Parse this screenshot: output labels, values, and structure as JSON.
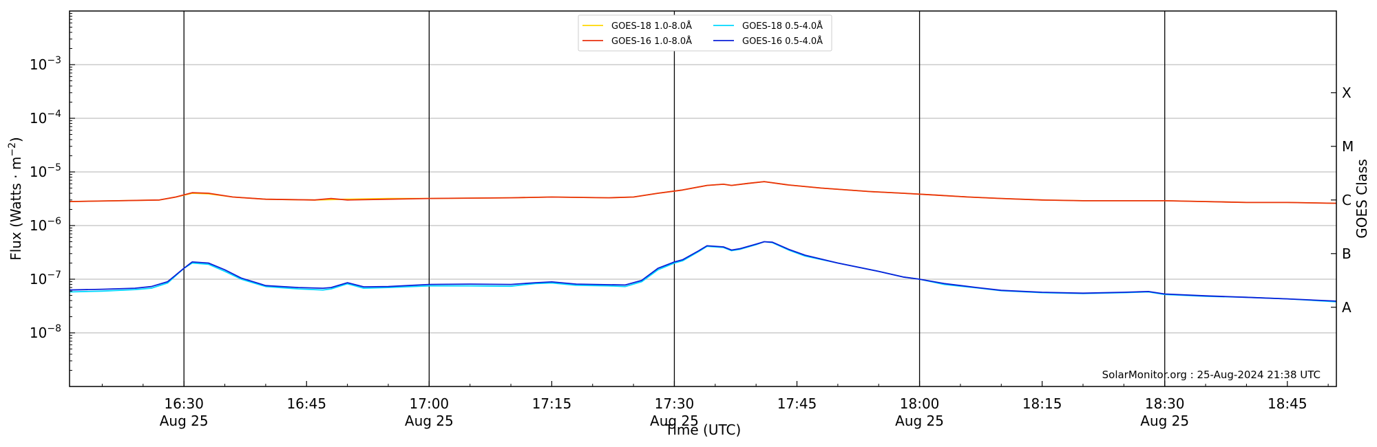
{
  "chart_data": {
    "type": "line",
    "xlabel": "Time (UTC)",
    "ylabel_left": "Flux (Watts · m",
    "ylabel_left_sup": "−2",
    "ylabel_left_end": ")",
    "ylabel_right": "GOES Class",
    "y_scale": "log",
    "ylim": [
      1e-09,
      0.01
    ],
    "xlim": [
      "16:16",
      "18:51"
    ],
    "grid": "horizontal at decades, vertical at half hours",
    "credit": "SolarMonitor.org : 25-Aug-2024 21:38 UTC",
    "legend_position": "top-center",
    "y_ticks": [
      {
        "value": 1e-08,
        "base": "10",
        "exp": "−8"
      },
      {
        "value": 1e-07,
        "base": "10",
        "exp": "−7"
      },
      {
        "value": 1e-06,
        "base": "10",
        "exp": "−6"
      },
      {
        "value": 1e-05,
        "base": "10",
        "exp": "−5"
      },
      {
        "value": 0.0001,
        "base": "10",
        "exp": "−4"
      },
      {
        "value": 0.001,
        "base": "10",
        "exp": "−3"
      }
    ],
    "x_ticks": [
      {
        "time": "16:30",
        "label": "16:30",
        "date": "Aug 25"
      },
      {
        "time": "16:45",
        "label": "16:45",
        "date": ""
      },
      {
        "time": "17:00",
        "label": "17:00",
        "date": "Aug 25"
      },
      {
        "time": "17:15",
        "label": "17:15",
        "date": ""
      },
      {
        "time": "17:30",
        "label": "17:30",
        "date": "Aug 25"
      },
      {
        "time": "17:45",
        "label": "17:45",
        "date": ""
      },
      {
        "time": "18:00",
        "label": "18:00",
        "date": "Aug 25"
      },
      {
        "time": "18:15",
        "label": "18:15",
        "date": ""
      },
      {
        "time": "18:30",
        "label": "18:30",
        "date": "Aug 25"
      },
      {
        "time": "18:45",
        "label": "18:45",
        "date": ""
      }
    ],
    "class_labels": [
      {
        "label": "A",
        "value": 3e-08
      },
      {
        "label": "B",
        "value": 3e-07
      },
      {
        "label": "C",
        "value": 3e-06
      },
      {
        "label": "M",
        "value": 3e-05
      },
      {
        "label": "X",
        "value": 0.0003
      }
    ],
    "series": [
      {
        "name": "GOES-18 1.0-8.0Å",
        "color": "#ffd700",
        "points": [
          [
            "16:16",
            2.8e-06
          ],
          [
            "16:22",
            2.9e-06
          ],
          [
            "16:27",
            3e-06
          ],
          [
            "16:29",
            3.4e-06
          ],
          [
            "16:31",
            4e-06
          ],
          [
            "16:33",
            3.9e-06
          ],
          [
            "16:36",
            3.4e-06
          ],
          [
            "16:40",
            3.1e-06
          ],
          [
            "16:46",
            3e-06
          ],
          [
            "16:50",
            3.1e-06
          ],
          [
            "16:55",
            3.2e-06
          ],
          [
            "17:00",
            3.2e-06
          ],
          [
            "17:10",
            3.3e-06
          ],
          [
            "17:15",
            3.4e-06
          ],
          [
            "17:22",
            3.3e-06
          ],
          [
            "17:25",
            3.4e-06
          ],
          [
            "17:28",
            4e-06
          ],
          [
            "17:31",
            4.6e-06
          ],
          [
            "17:34",
            5.6e-06
          ],
          [
            "17:36",
            5.9e-06
          ],
          [
            "17:37",
            5.6e-06
          ],
          [
            "17:39",
            6.1e-06
          ],
          [
            "17:41",
            6.6e-06
          ],
          [
            "17:44",
            5.7e-06
          ],
          [
            "17:48",
            5e-06
          ],
          [
            "17:54",
            4.3e-06
          ],
          [
            "17:58",
            4e-06
          ],
          [
            "18:02",
            3.7e-06
          ],
          [
            "18:06",
            3.4e-06
          ],
          [
            "18:10",
            3.2e-06
          ],
          [
            "18:15",
            3e-06
          ],
          [
            "18:20",
            2.9e-06
          ],
          [
            "18:25",
            2.9e-06
          ],
          [
            "18:30",
            2.9e-06
          ],
          [
            "18:35",
            2.8e-06
          ],
          [
            "18:40",
            2.7e-06
          ],
          [
            "18:45",
            2.7e-06
          ],
          [
            "18:51",
            2.6e-06
          ]
        ]
      },
      {
        "name": "GOES-16 1.0-8.0Å",
        "color": "#e8300e",
        "points": [
          [
            "16:16",
            2.8e-06
          ],
          [
            "16:22",
            2.9e-06
          ],
          [
            "16:27",
            3e-06
          ],
          [
            "16:29",
            3.4e-06
          ],
          [
            "16:31",
            4.1e-06
          ],
          [
            "16:33",
            4e-06
          ],
          [
            "16:36",
            3.4e-06
          ],
          [
            "16:40",
            3.1e-06
          ],
          [
            "16:46",
            3e-06
          ],
          [
            "16:48",
            3.2e-06
          ],
          [
            "16:50",
            3e-06
          ],
          [
            "16:55",
            3.1e-06
          ],
          [
            "17:00",
            3.2e-06
          ],
          [
            "17:10",
            3.3e-06
          ],
          [
            "17:15",
            3.4e-06
          ],
          [
            "17:22",
            3.3e-06
          ],
          [
            "17:25",
            3.4e-06
          ],
          [
            "17:28",
            4e-06
          ],
          [
            "17:31",
            4.6e-06
          ],
          [
            "17:34",
            5.6e-06
          ],
          [
            "17:36",
            5.9e-06
          ],
          [
            "17:37",
            5.6e-06
          ],
          [
            "17:39",
            6.1e-06
          ],
          [
            "17:41",
            6.6e-06
          ],
          [
            "17:44",
            5.7e-06
          ],
          [
            "17:48",
            5e-06
          ],
          [
            "17:54",
            4.3e-06
          ],
          [
            "17:58",
            4e-06
          ],
          [
            "18:02",
            3.7e-06
          ],
          [
            "18:06",
            3.4e-06
          ],
          [
            "18:10",
            3.2e-06
          ],
          [
            "18:15",
            3e-06
          ],
          [
            "18:20",
            2.9e-06
          ],
          [
            "18:25",
            2.9e-06
          ],
          [
            "18:30",
            2.9e-06
          ],
          [
            "18:35",
            2.8e-06
          ],
          [
            "18:40",
            2.7e-06
          ],
          [
            "18:45",
            2.7e-06
          ],
          [
            "18:51",
            2.6e-06
          ]
        ]
      },
      {
        "name": "GOES-18 0.5-4.0Å",
        "color": "#00d8ff",
        "points": [
          [
            "16:16",
            5.8e-08
          ],
          [
            "16:20",
            6e-08
          ],
          [
            "16:24",
            6.4e-08
          ],
          [
            "16:26",
            6.8e-08
          ],
          [
            "16:28",
            8.5e-08
          ],
          [
            "16:30",
            1.6e-07
          ],
          [
            "16:31",
            2e-07
          ],
          [
            "16:33",
            1.9e-07
          ],
          [
            "16:35",
            1.4e-07
          ],
          [
            "16:37",
            1e-07
          ],
          [
            "16:40",
            7.3e-08
          ],
          [
            "16:44",
            6.6e-08
          ],
          [
            "16:47",
            6.3e-08
          ],
          [
            "16:48",
            6.6e-08
          ],
          [
            "16:50",
            8.2e-08
          ],
          [
            "16:52",
            6.8e-08
          ],
          [
            "16:55",
            7e-08
          ],
          [
            "17:00",
            7.5e-08
          ],
          [
            "17:05",
            7.5e-08
          ],
          [
            "17:10",
            7.4e-08
          ],
          [
            "17:13",
            8.3e-08
          ],
          [
            "17:15",
            8.5e-08
          ],
          [
            "17:18",
            7.7e-08
          ],
          [
            "17:22",
            7.5e-08
          ],
          [
            "17:24",
            7.3e-08
          ],
          [
            "17:26",
            9e-08
          ],
          [
            "17:28",
            1.5e-07
          ],
          [
            "17:30",
            2e-07
          ],
          [
            "17:31",
            2.2e-07
          ],
          [
            "17:33",
            3.3e-07
          ],
          [
            "17:34",
            4.1e-07
          ],
          [
            "17:36",
            3.9e-07
          ],
          [
            "17:37",
            3.4e-07
          ],
          [
            "17:38",
            3.6e-07
          ],
          [
            "17:40",
            4.4e-07
          ],
          [
            "17:41",
            5e-07
          ],
          [
            "17:42",
            4.8e-07
          ],
          [
            "17:44",
            3.5e-07
          ],
          [
            "17:46",
            2.7e-07
          ],
          [
            "17:50",
            2e-07
          ],
          [
            "17:55",
            1.4e-07
          ],
          [
            "17:58",
            1.1e-07
          ],
          [
            "18:00",
            1e-07
          ],
          [
            "18:03",
            8e-08
          ],
          [
            "18:07",
            6.9e-08
          ],
          [
            "18:10",
            6.1e-08
          ],
          [
            "18:15",
            5.6e-08
          ],
          [
            "18:20",
            5.4e-08
          ],
          [
            "18:25",
            5.6e-08
          ],
          [
            "18:28",
            5.8e-08
          ],
          [
            "18:30",
            5.2e-08
          ],
          [
            "18:35",
            4.8e-08
          ],
          [
            "18:40",
            4.6e-08
          ],
          [
            "18:45",
            4.3e-08
          ],
          [
            "18:51",
            3.8e-08
          ]
        ]
      },
      {
        "name": "GOES-16 0.5-4.0Å",
        "color": "#0a1fd8",
        "points": [
          [
            "16:16",
            6.3e-08
          ],
          [
            "16:20",
            6.5e-08
          ],
          [
            "16:24",
            6.8e-08
          ],
          [
            "16:26",
            7.3e-08
          ],
          [
            "16:28",
            9e-08
          ],
          [
            "16:30",
            1.6e-07
          ],
          [
            "16:31",
            2.1e-07
          ],
          [
            "16:33",
            2e-07
          ],
          [
            "16:35",
            1.5e-07
          ],
          [
            "16:37",
            1.05e-07
          ],
          [
            "16:40",
            7.6e-08
          ],
          [
            "16:44",
            7e-08
          ],
          [
            "16:47",
            6.8e-08
          ],
          [
            "16:48",
            7e-08
          ],
          [
            "16:50",
            8.6e-08
          ],
          [
            "16:52",
            7.2e-08
          ],
          [
            "16:55",
            7.3e-08
          ],
          [
            "17:00",
            8e-08
          ],
          [
            "17:05",
            8.1e-08
          ],
          [
            "17:10",
            8e-08
          ],
          [
            "17:13",
            8.6e-08
          ],
          [
            "17:15",
            8.9e-08
          ],
          [
            "17:18",
            8.1e-08
          ],
          [
            "17:22",
            7.9e-08
          ],
          [
            "17:24",
            7.8e-08
          ],
          [
            "17:26",
            9.5e-08
          ],
          [
            "17:28",
            1.6e-07
          ],
          [
            "17:30",
            2.1e-07
          ],
          [
            "17:31",
            2.3e-07
          ],
          [
            "17:33",
            3.4e-07
          ],
          [
            "17:34",
            4.2e-07
          ],
          [
            "17:36",
            4e-07
          ],
          [
            "17:37",
            3.5e-07
          ],
          [
            "17:38",
            3.7e-07
          ],
          [
            "17:40",
            4.5e-07
          ],
          [
            "17:41",
            5e-07
          ],
          [
            "17:42",
            4.9e-07
          ],
          [
            "17:44",
            3.6e-07
          ],
          [
            "17:46",
            2.8e-07
          ],
          [
            "17:50",
            2e-07
          ],
          [
            "17:55",
            1.4e-07
          ],
          [
            "17:58",
            1.1e-07
          ],
          [
            "18:00",
            1e-07
          ],
          [
            "18:03",
            8.3e-08
          ],
          [
            "18:07",
            7e-08
          ],
          [
            "18:10",
            6.2e-08
          ],
          [
            "18:15",
            5.7e-08
          ],
          [
            "18:20",
            5.5e-08
          ],
          [
            "18:25",
            5.7e-08
          ],
          [
            "18:28",
            5.9e-08
          ],
          [
            "18:30",
            5.3e-08
          ],
          [
            "18:35",
            4.9e-08
          ],
          [
            "18:40",
            4.6e-08
          ],
          [
            "18:45",
            4.3e-08
          ],
          [
            "18:51",
            3.9e-08
          ]
        ]
      }
    ]
  }
}
